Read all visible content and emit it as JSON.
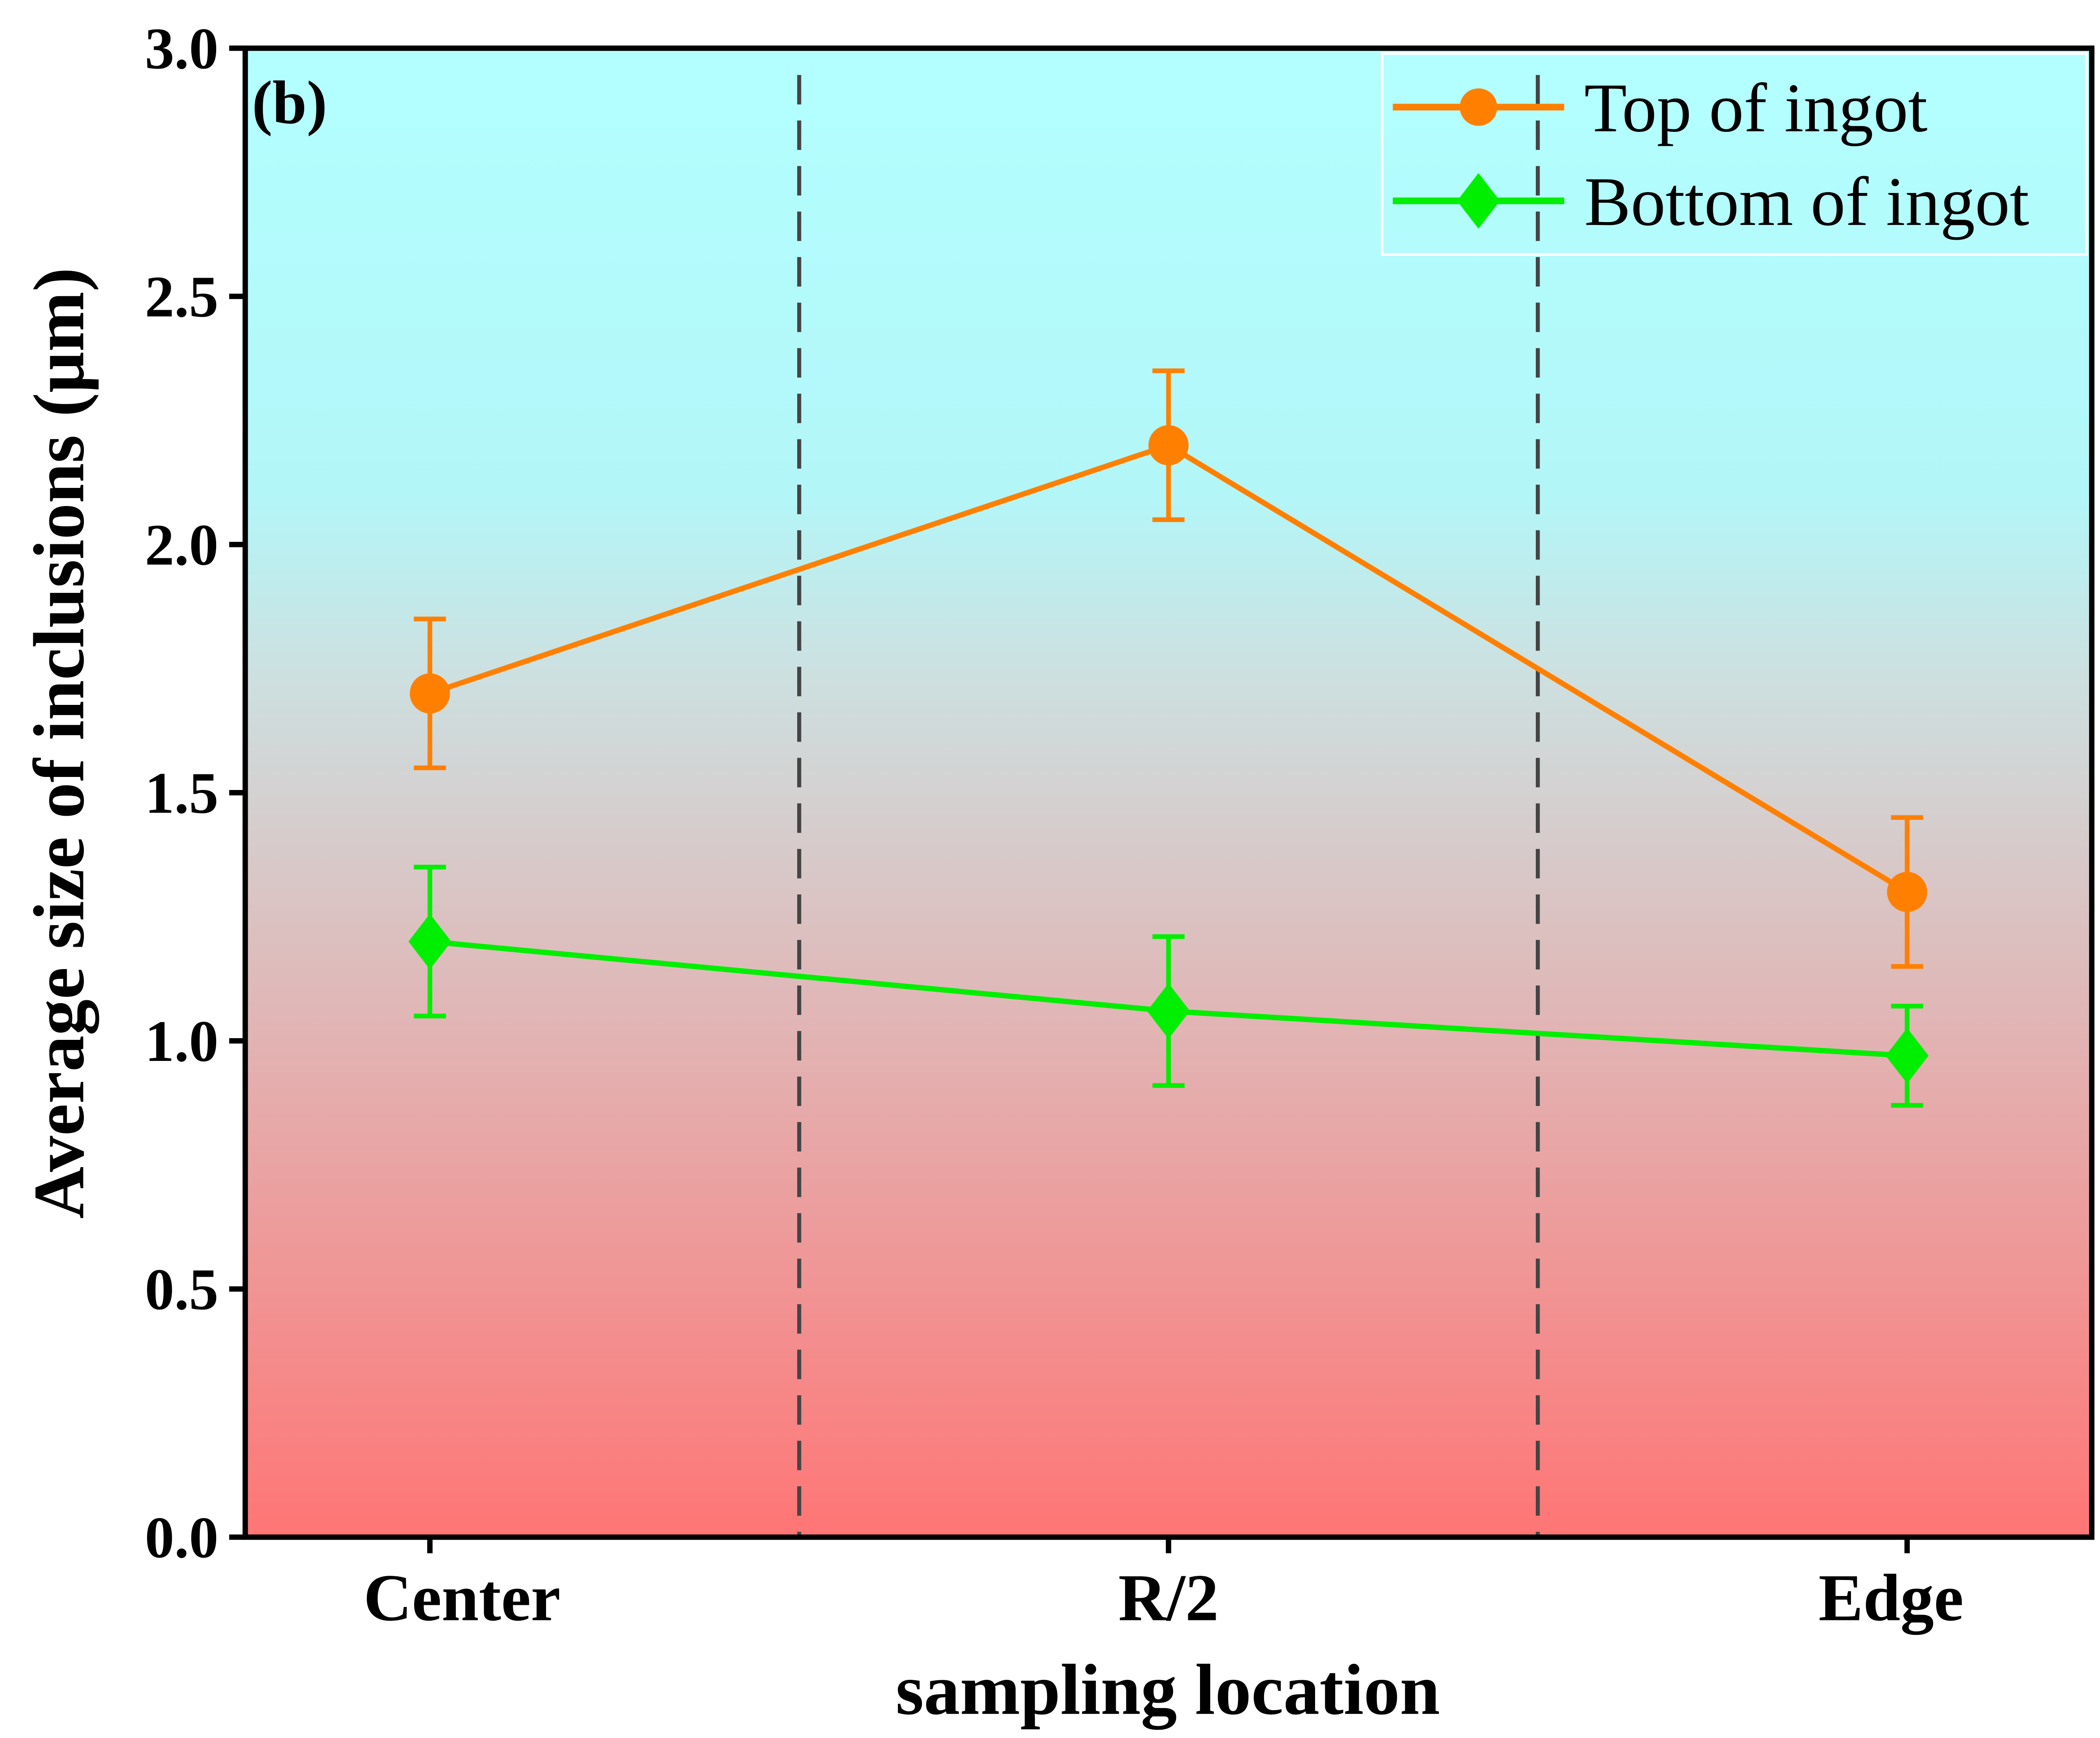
{
  "chart_data": {
    "type": "line",
    "panel_label": "(b)",
    "xlabel": "sampling location",
    "ylabel": "Average size of inclusions (μm)",
    "categories": [
      "Center",
      "R/2",
      "Edge"
    ],
    "ylim": [
      0,
      3.0
    ],
    "yticks": [
      "0.0",
      "0.5",
      "1.0",
      "1.5",
      "2.0",
      "2.5",
      "3.0"
    ],
    "grid": false,
    "dividers_between_categories": true,
    "legend_position": "top-right",
    "background_gradient": {
      "top": "#b3ffff",
      "bottom": "#ff7575"
    },
    "series": [
      {
        "name": "Top of ingot",
        "marker": "circle",
        "color": "#ff8000",
        "values": [
          1.7,
          2.2,
          1.3
        ],
        "error": [
          0.15,
          0.15,
          0.15
        ]
      },
      {
        "name": "Bottom of ingot",
        "marker": "diamond",
        "color": "#00ee00",
        "values": [
          1.2,
          1.06,
          0.97
        ],
        "error": [
          0.15,
          0.15,
          0.1
        ]
      }
    ]
  }
}
